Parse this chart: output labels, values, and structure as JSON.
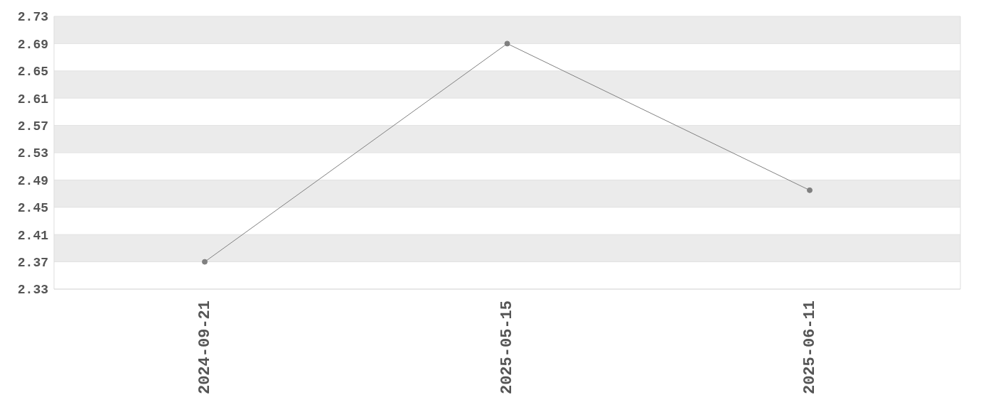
{
  "chart_data": {
    "type": "line",
    "categories": [
      "2024-09-21",
      "2025-05-15",
      "2025-06-11"
    ],
    "series": [
      {
        "color": "#808080",
        "values": [
          2.37,
          2.69,
          2.475
        ]
      }
    ],
    "ylim": [
      2.33,
      2.73
    ],
    "yticks": [
      2.33,
      2.37,
      2.41,
      2.45,
      2.49,
      2.53,
      2.57,
      2.61,
      2.65,
      2.69,
      2.73
    ],
    "grid": "y",
    "marker": "circle",
    "line_style": "solid",
    "legend": false
  }
}
